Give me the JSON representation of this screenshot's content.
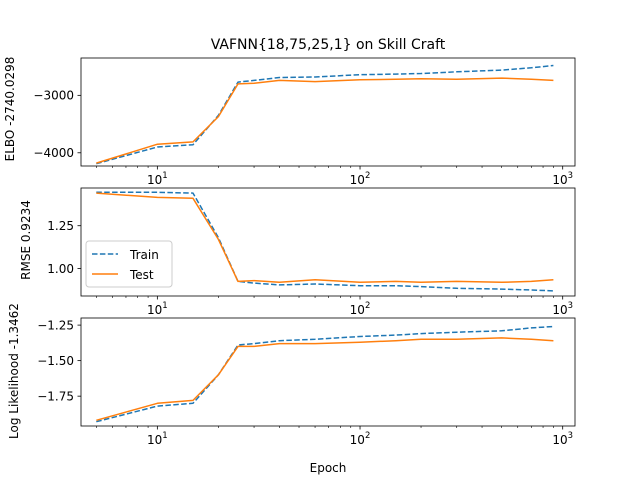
{
  "figure": {
    "title": "VAFNN{18,75,25,1} on Skill Craft",
    "xlabel": "Epoch"
  },
  "legend": {
    "location": "lower-left of middle panel",
    "entries": [
      {
        "label": "Train",
        "color": "#1f77b4",
        "style": "dashed"
      },
      {
        "label": "Test",
        "color": "#ff7f0e",
        "style": "solid"
      }
    ]
  },
  "chart_data": [
    {
      "type": "line",
      "panel": "top",
      "ylabel": "ELBO -2740.0298",
      "xscale": "log",
      "xlim": [
        4.2,
        1150
      ],
      "ylim": [
        -4230,
        -2350
      ],
      "xticks": [
        {
          "base": "10",
          "exp": "1",
          "value": 10
        },
        {
          "base": "10",
          "exp": "2",
          "value": 100
        },
        {
          "base": "10",
          "exp": "3",
          "value": 1000
        }
      ],
      "yticks": [
        {
          "label": "−3000",
          "value": -3000
        },
        {
          "label": "−4000",
          "value": -4000
        }
      ],
      "series": [
        {
          "name": "Train",
          "color": "#1f77b4",
          "dash": true,
          "x": [
            5,
            10,
            15,
            20,
            25,
            30,
            40,
            60,
            100,
            150,
            200,
            300,
            500,
            700,
            900
          ],
          "y": [
            -4190,
            -3900,
            -3860,
            -3350,
            -2770,
            -2740,
            -2690,
            -2680,
            -2640,
            -2630,
            -2620,
            -2590,
            -2560,
            -2520,
            -2480
          ]
        },
        {
          "name": "Test",
          "color": "#ff7f0e",
          "dash": false,
          "x": [
            5,
            10,
            15,
            20,
            25,
            30,
            40,
            60,
            100,
            150,
            200,
            300,
            500,
            700,
            900
          ],
          "y": [
            -4180,
            -3850,
            -3810,
            -3370,
            -2800,
            -2790,
            -2740,
            -2760,
            -2730,
            -2720,
            -2710,
            -2720,
            -2700,
            -2720,
            -2740
          ]
        }
      ]
    },
    {
      "type": "line",
      "panel": "middle",
      "ylabel": "RMSE 0.9234",
      "xscale": "log",
      "xlim": [
        4.2,
        1150
      ],
      "ylim": [
        0.84,
        1.47
      ],
      "xticks": [
        {
          "base": "10",
          "exp": "1",
          "value": 10
        },
        {
          "base": "10",
          "exp": "2",
          "value": 100
        },
        {
          "base": "10",
          "exp": "3",
          "value": 1000
        }
      ],
      "yticks": [
        {
          "label": "1.00",
          "value": 1.0
        },
        {
          "label": "1.25",
          "value": 1.25
        }
      ],
      "series": [
        {
          "name": "Train",
          "color": "#1f77b4",
          "dash": true,
          "x": [
            5,
            10,
            15,
            20,
            25,
            30,
            40,
            60,
            100,
            150,
            200,
            300,
            500,
            700,
            900
          ],
          "y": [
            1.445,
            1.445,
            1.44,
            1.18,
            0.925,
            0.915,
            0.905,
            0.91,
            0.9,
            0.9,
            0.895,
            0.885,
            0.88,
            0.875,
            0.87
          ]
        },
        {
          "name": "Test",
          "color": "#ff7f0e",
          "dash": false,
          "x": [
            5,
            10,
            15,
            20,
            25,
            30,
            40,
            60,
            100,
            150,
            200,
            300,
            500,
            700,
            900
          ],
          "y": [
            1.44,
            1.415,
            1.41,
            1.17,
            0.925,
            0.93,
            0.92,
            0.935,
            0.92,
            0.925,
            0.92,
            0.925,
            0.92,
            0.925,
            0.935
          ]
        }
      ]
    },
    {
      "type": "line",
      "panel": "bottom",
      "ylabel": "Log Likelihood -1.3462",
      "xscale": "log",
      "xlim": [
        4.2,
        1150
      ],
      "ylim": [
        -1.96,
        -1.2
      ],
      "xticks": [
        {
          "base": "10",
          "exp": "1",
          "value": 10
        },
        {
          "base": "10",
          "exp": "2",
          "value": 100
        },
        {
          "base": "10",
          "exp": "3",
          "value": 1000
        }
      ],
      "yticks": [
        {
          "label": "−1.25",
          "value": -1.25
        },
        {
          "label": "−1.50",
          "value": -1.5
        },
        {
          "label": "−1.75",
          "value": -1.75
        }
      ],
      "series": [
        {
          "name": "Train",
          "color": "#1f77b4",
          "dash": true,
          "x": [
            5,
            10,
            15,
            20,
            25,
            30,
            40,
            60,
            100,
            150,
            200,
            300,
            500,
            700,
            900
          ],
          "y": [
            -1.93,
            -1.82,
            -1.8,
            -1.6,
            -1.39,
            -1.38,
            -1.36,
            -1.35,
            -1.33,
            -1.32,
            -1.31,
            -1.3,
            -1.29,
            -1.27,
            -1.26
          ]
        },
        {
          "name": "Test",
          "color": "#ff7f0e",
          "dash": false,
          "x": [
            5,
            10,
            15,
            20,
            25,
            30,
            40,
            60,
            100,
            150,
            200,
            300,
            500,
            700,
            900
          ],
          "y": [
            -1.92,
            -1.8,
            -1.78,
            -1.6,
            -1.4,
            -1.4,
            -1.38,
            -1.38,
            -1.37,
            -1.36,
            -1.35,
            -1.35,
            -1.34,
            -1.35,
            -1.36
          ]
        }
      ]
    }
  ]
}
